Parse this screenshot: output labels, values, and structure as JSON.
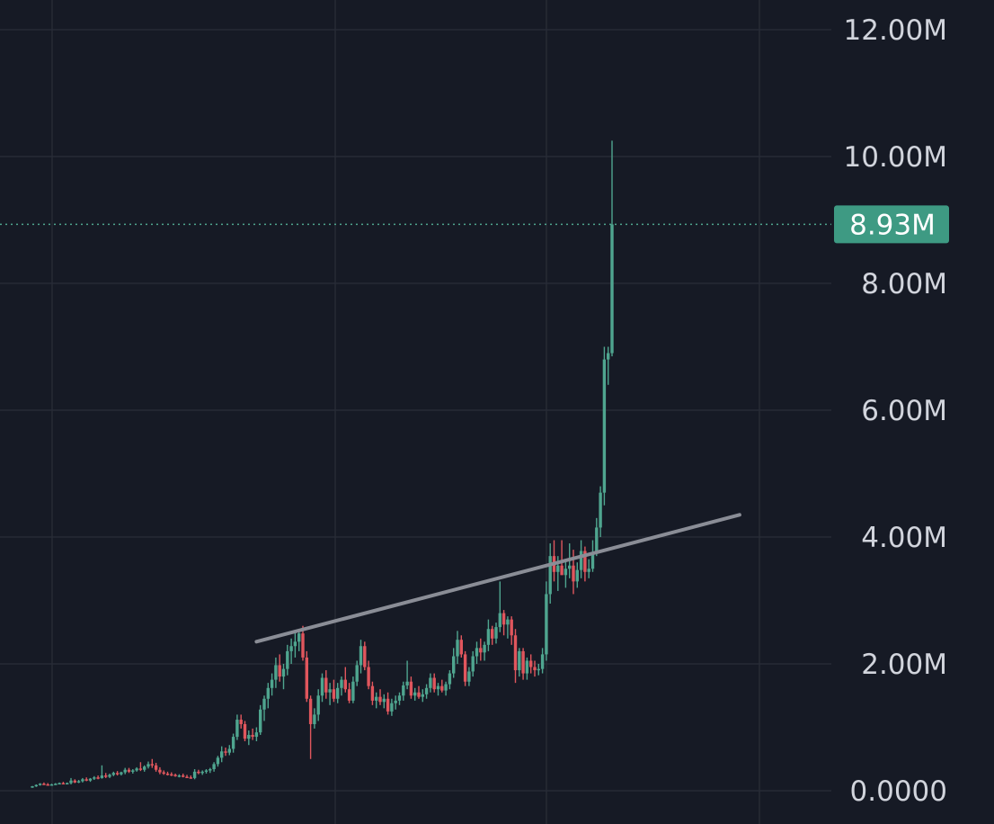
{
  "chart_data": {
    "type": "candlestick",
    "y_axis": {
      "ticks": [
        {
          "value": 0,
          "label": "0.0000"
        },
        {
          "value": 2000000,
          "label": "2.00M"
        },
        {
          "value": 4000000,
          "label": "4.00M"
        },
        {
          "value": 6000000,
          "label": "6.00M"
        },
        {
          "value": 8000000,
          "label": "8.00M"
        },
        {
          "value": 10000000,
          "label": "10.00M"
        },
        {
          "value": 12000000,
          "label": "12.00M"
        }
      ],
      "range": [
        0,
        12400000
      ],
      "position": "right"
    },
    "grid": true,
    "current_price": {
      "value": 8930000,
      "label": "8.93M"
    },
    "trendline": {
      "start": {
        "index": 58,
        "value": 2350000
      },
      "end": {
        "index": 183,
        "value": 4350000
      }
    },
    "candles": [
      [
        0.055,
        0.075,
        0.045,
        0.07
      ],
      [
        0.07,
        0.1,
        0.06,
        0.09
      ],
      [
        0.09,
        0.12,
        0.08,
        0.11
      ],
      [
        0.11,
        0.13,
        0.09,
        0.1
      ],
      [
        0.1,
        0.12,
        0.08,
        0.09
      ],
      [
        0.09,
        0.11,
        0.08,
        0.1
      ],
      [
        0.1,
        0.12,
        0.09,
        0.11
      ],
      [
        0.11,
        0.13,
        0.1,
        0.12
      ],
      [
        0.12,
        0.14,
        0.1,
        0.11
      ],
      [
        0.11,
        0.13,
        0.1,
        0.12
      ],
      [
        0.12,
        0.2,
        0.1,
        0.16
      ],
      [
        0.16,
        0.18,
        0.12,
        0.13
      ],
      [
        0.13,
        0.17,
        0.12,
        0.15
      ],
      [
        0.15,
        0.2,
        0.13,
        0.18
      ],
      [
        0.18,
        0.21,
        0.15,
        0.16
      ],
      [
        0.16,
        0.2,
        0.14,
        0.19
      ],
      [
        0.19,
        0.23,
        0.17,
        0.21
      ],
      [
        0.21,
        0.24,
        0.18,
        0.2
      ],
      [
        0.2,
        0.4,
        0.19,
        0.24
      ],
      [
        0.24,
        0.28,
        0.2,
        0.22
      ],
      [
        0.22,
        0.27,
        0.2,
        0.25
      ],
      [
        0.25,
        0.3,
        0.23,
        0.28
      ],
      [
        0.28,
        0.31,
        0.24,
        0.26
      ],
      [
        0.26,
        0.3,
        0.24,
        0.29
      ],
      [
        0.29,
        0.36,
        0.26,
        0.33
      ],
      [
        0.33,
        0.36,
        0.28,
        0.3
      ],
      [
        0.3,
        0.34,
        0.27,
        0.32
      ],
      [
        0.32,
        0.37,
        0.3,
        0.35
      ],
      [
        0.35,
        0.45,
        0.31,
        0.33
      ],
      [
        0.33,
        0.4,
        0.3,
        0.38
      ],
      [
        0.38,
        0.46,
        0.35,
        0.42
      ],
      [
        0.42,
        0.5,
        0.36,
        0.4
      ],
      [
        0.4,
        0.44,
        0.3,
        0.33
      ],
      [
        0.33,
        0.37,
        0.26,
        0.29
      ],
      [
        0.29,
        0.32,
        0.25,
        0.27
      ],
      [
        0.27,
        0.3,
        0.24,
        0.26
      ],
      [
        0.26,
        0.29,
        0.23,
        0.25
      ],
      [
        0.25,
        0.27,
        0.22,
        0.23
      ],
      [
        0.23,
        0.26,
        0.21,
        0.24
      ],
      [
        0.24,
        0.27,
        0.21,
        0.22
      ],
      [
        0.22,
        0.25,
        0.2,
        0.21
      ],
      [
        0.21,
        0.24,
        0.19,
        0.2
      ],
      [
        0.2,
        0.34,
        0.18,
        0.3
      ],
      [
        0.3,
        0.33,
        0.26,
        0.28
      ],
      [
        0.28,
        0.32,
        0.25,
        0.3
      ],
      [
        0.3,
        0.34,
        0.27,
        0.32
      ],
      [
        0.32,
        0.36,
        0.28,
        0.34
      ],
      [
        0.34,
        0.45,
        0.3,
        0.42
      ],
      [
        0.42,
        0.55,
        0.38,
        0.52
      ],
      [
        0.52,
        0.7,
        0.45,
        0.62
      ],
      [
        0.62,
        0.68,
        0.55,
        0.6
      ],
      [
        0.6,
        0.72,
        0.56,
        0.66
      ],
      [
        0.66,
        0.9,
        0.6,
        0.85
      ],
      [
        0.85,
        1.2,
        0.8,
        1.12
      ],
      [
        1.12,
        1.2,
        0.98,
        1.05
      ],
      [
        1.05,
        1.1,
        0.78,
        0.82
      ],
      [
        0.82,
        0.95,
        0.72,
        0.88
      ],
      [
        0.88,
        0.98,
        0.8,
        0.85
      ],
      [
        0.85,
        1.0,
        0.78,
        0.92
      ],
      [
        0.92,
        1.35,
        0.88,
        1.28
      ],
      [
        1.28,
        1.5,
        1.1,
        1.45
      ],
      [
        1.45,
        1.7,
        1.3,
        1.62
      ],
      [
        1.62,
        1.85,
        1.5,
        1.75
      ],
      [
        1.75,
        2.1,
        1.62,
        1.98
      ],
      [
        1.98,
        2.15,
        1.72,
        1.8
      ],
      [
        1.8,
        2.0,
        1.6,
        1.92
      ],
      [
        1.92,
        2.3,
        1.82,
        2.2
      ],
      [
        2.2,
        2.4,
        2.0,
        2.28
      ],
      [
        2.28,
        2.5,
        2.1,
        2.35
      ],
      [
        2.35,
        2.55,
        2.2,
        2.48
      ],
      [
        2.48,
        2.6,
        2.05,
        2.1
      ],
      [
        2.1,
        2.2,
        1.4,
        1.45
      ],
      [
        1.45,
        1.5,
        0.5,
        1.05
      ],
      [
        1.05,
        1.3,
        0.98,
        1.2
      ],
      [
        1.2,
        1.6,
        1.1,
        1.5
      ],
      [
        1.5,
        1.85,
        1.4,
        1.78
      ],
      [
        1.78,
        1.9,
        1.45,
        1.55
      ],
      [
        1.55,
        1.7,
        1.35,
        1.6
      ],
      [
        1.6,
        1.75,
        1.4,
        1.45
      ],
      [
        1.45,
        1.7,
        1.38,
        1.62
      ],
      [
        1.62,
        1.8,
        1.5,
        1.75
      ],
      [
        1.75,
        1.95,
        1.55,
        1.6
      ],
      [
        1.6,
        1.7,
        1.38,
        1.42
      ],
      [
        1.42,
        1.8,
        1.38,
        1.72
      ],
      [
        1.72,
        2.05,
        1.65,
        1.98
      ],
      [
        1.98,
        2.38,
        1.85,
        2.28
      ],
      [
        2.28,
        2.35,
        1.9,
        1.95
      ],
      [
        1.95,
        2.05,
        1.6,
        1.65
      ],
      [
        1.65,
        1.72,
        1.35,
        1.42
      ],
      [
        1.42,
        1.55,
        1.3,
        1.48
      ],
      [
        1.48,
        1.6,
        1.35,
        1.4
      ],
      [
        1.4,
        1.52,
        1.3,
        1.45
      ],
      [
        1.45,
        1.55,
        1.2,
        1.25
      ],
      [
        1.25,
        1.45,
        1.18,
        1.38
      ],
      [
        1.38,
        1.5,
        1.28,
        1.42
      ],
      [
        1.42,
        1.55,
        1.35,
        1.5
      ],
      [
        1.5,
        1.72,
        1.42,
        1.66
      ],
      [
        1.66,
        2.05,
        1.6,
        1.72
      ],
      [
        1.72,
        1.8,
        1.45,
        1.5
      ],
      [
        1.5,
        1.62,
        1.42,
        1.55
      ],
      [
        1.55,
        1.65,
        1.45,
        1.48
      ],
      [
        1.48,
        1.6,
        1.4,
        1.52
      ],
      [
        1.52,
        1.68,
        1.45,
        1.62
      ],
      [
        1.62,
        1.85,
        1.55,
        1.78
      ],
      [
        1.78,
        1.85,
        1.55,
        1.6
      ],
      [
        1.6,
        1.7,
        1.5,
        1.65
      ],
      [
        1.65,
        1.75,
        1.55,
        1.58
      ],
      [
        1.58,
        1.72,
        1.5,
        1.68
      ],
      [
        1.68,
        1.9,
        1.6,
        1.85
      ],
      [
        1.85,
        2.25,
        1.78,
        2.12
      ],
      [
        2.12,
        2.52,
        2.0,
        2.38
      ],
      [
        2.38,
        2.45,
        2.1,
        2.15
      ],
      [
        2.15,
        2.2,
        1.65,
        1.72
      ],
      [
        1.72,
        1.95,
        1.65,
        1.88
      ],
      [
        1.88,
        2.2,
        1.8,
        2.12
      ],
      [
        2.12,
        2.35,
        2.0,
        2.25
      ],
      [
        2.25,
        2.4,
        2.05,
        2.18
      ],
      [
        2.18,
        2.35,
        2.05,
        2.3
      ],
      [
        2.3,
        2.7,
        2.2,
        2.55
      ],
      [
        2.55,
        2.6,
        2.3,
        2.4
      ],
      [
        2.4,
        2.65,
        2.32,
        2.58
      ],
      [
        2.58,
        3.3,
        2.5,
        2.8
      ],
      [
        2.8,
        2.85,
        2.45,
        2.62
      ],
      [
        2.62,
        2.75,
        2.4,
        2.7
      ],
      [
        2.7,
        2.75,
        2.3,
        2.45
      ],
      [
        2.45,
        2.55,
        1.7,
        1.9
      ],
      [
        1.9,
        2.25,
        1.8,
        2.2
      ],
      [
        2.2,
        2.25,
        1.75,
        1.85
      ],
      [
        1.85,
        2.1,
        1.75,
        2.05
      ],
      [
        2.05,
        2.15,
        1.85,
        1.95
      ],
      [
        1.95,
        2.05,
        1.8,
        1.9
      ],
      [
        1.9,
        2.0,
        1.82,
        1.92
      ],
      [
        1.92,
        2.25,
        1.85,
        2.15
      ],
      [
        2.15,
        3.3,
        2.05,
        3.1
      ],
      [
        3.1,
        3.9,
        2.95,
        3.7
      ],
      [
        3.7,
        3.95,
        3.3,
        3.45
      ],
      [
        3.45,
        3.7,
        3.15,
        3.55
      ],
      [
        3.55,
        3.95,
        3.4,
        3.4
      ],
      [
        3.4,
        3.65,
        3.2,
        3.5
      ],
      [
        3.5,
        3.9,
        3.35,
        3.55
      ],
      [
        3.55,
        3.8,
        3.1,
        3.3
      ],
      [
        3.3,
        3.6,
        3.2,
        3.48
      ],
      [
        3.48,
        3.95,
        3.35,
        3.78
      ],
      [
        3.78,
        3.85,
        3.3,
        3.45
      ],
      [
        3.45,
        3.65,
        3.35,
        3.5
      ],
      [
        3.5,
        3.95,
        3.45,
        3.75
      ],
      [
        3.75,
        4.3,
        3.7,
        4.15
      ],
      [
        4.15,
        4.8,
        4.0,
        4.7
      ],
      [
        4.7,
        7.0,
        4.5,
        6.8
      ],
      [
        6.8,
        7.0,
        6.4,
        6.9
      ],
      [
        6.9,
        10.25,
        6.85,
        8.93
      ]
    ]
  }
}
